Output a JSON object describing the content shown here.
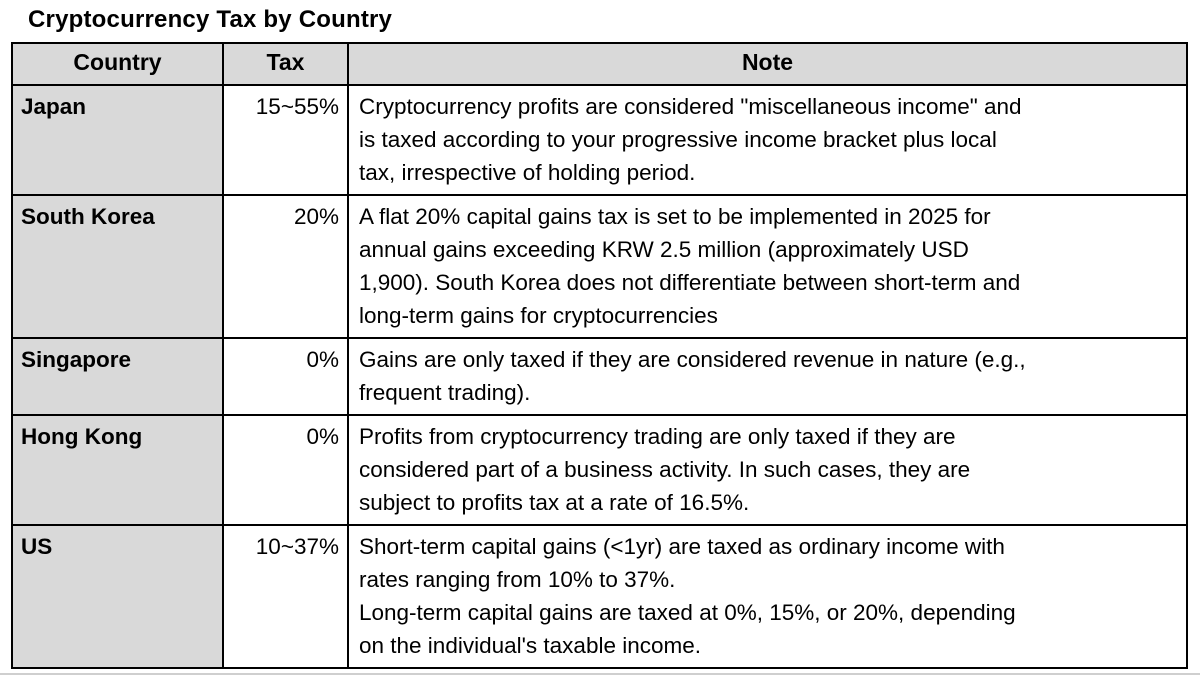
{
  "page": {
    "title": "Cryptocurrency Tax by Country"
  },
  "table": {
    "headers": {
      "country": "Country",
      "tax": "Tax",
      "note": "Note"
    },
    "rows": [
      {
        "country": "Japan",
        "tax": "15~55%",
        "note": "Cryptocurrency profits are considered \"miscellaneous income\" and\nis taxed according to your progressive income bracket plus local\ntax, irrespective of holding period."
      },
      {
        "country": "South Korea",
        "tax": "20%",
        "note": "A flat 20% capital gains tax is set to be implemented in 2025 for\nannual gains exceeding KRW 2.5 million (approximately USD\n1,900). South Korea does not differentiate between short-term and\nlong-term gains for cryptocurrencies"
      },
      {
        "country": "Singapore",
        "tax": "0%",
        "note": "Gains are only taxed if they are considered revenue in nature (e.g.,\nfrequent trading)."
      },
      {
        "country": "Hong Kong",
        "tax": "0%",
        "note": "Profits from cryptocurrency trading are only taxed if they are\nconsidered part of a business activity. In such cases, they are\nsubject to profits tax at a rate of 16.5%."
      },
      {
        "country": "US",
        "tax": "10~37%",
        "note": "Short-term capital gains (<1yr) are taxed as ordinary income with\nrates ranging from 10% to 37%.\nLong-term capital gains are taxed at 0%, 15%, or 20%, depending\non the individual's taxable income."
      }
    ]
  },
  "colors": {
    "header_bg": "#d9d9d9",
    "border": "#000000",
    "divider": "#cfcfcf"
  }
}
